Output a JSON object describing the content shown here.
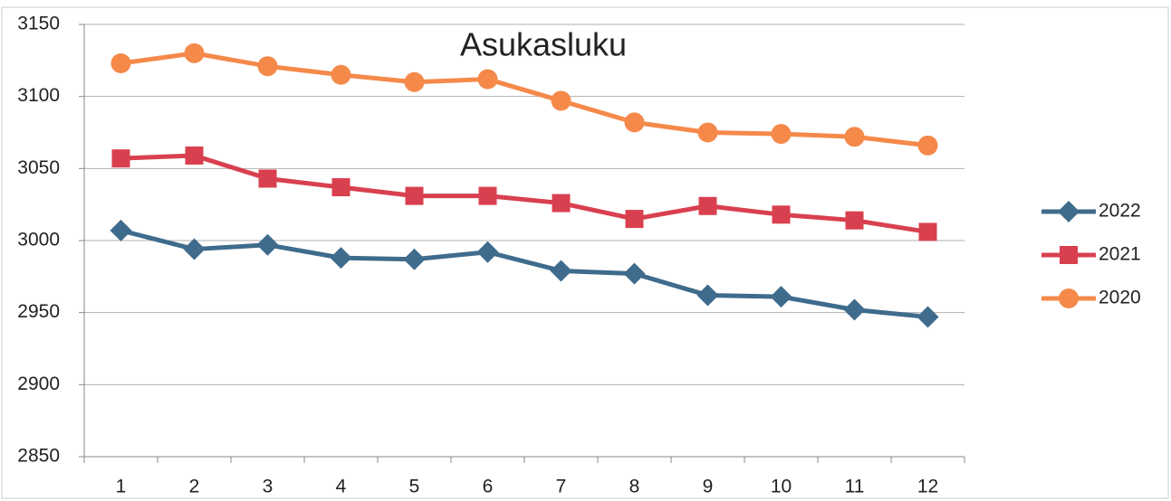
{
  "chart_data": {
    "type": "line",
    "title": "Asukasluku",
    "categories": [
      "1",
      "2",
      "3",
      "4",
      "5",
      "6",
      "7",
      "8",
      "9",
      "10",
      "11",
      "12"
    ],
    "series": [
      {
        "name": "2022",
        "color": "#3f6b8c",
        "marker": "diamond",
        "values": [
          3007,
          2994,
          2997,
          2988,
          2987,
          2992,
          2979,
          2977,
          2962,
          2961,
          2952,
          2947
        ]
      },
      {
        "name": "2021",
        "color": "#d9404f",
        "marker": "square",
        "values": [
          3057,
          3059,
          3043,
          3037,
          3031,
          3031,
          3026,
          3015,
          3024,
          3018,
          3014,
          3006
        ]
      },
      {
        "name": "2020",
        "color": "#f5894a",
        "marker": "circle",
        "values": [
          3123,
          3130,
          3121,
          3115,
          3110,
          3112,
          3097,
          3082,
          3075,
          3074,
          3072,
          3066
        ]
      }
    ],
    "ylim": [
      2850,
      3150
    ],
    "yticks": [
      2850,
      2900,
      2950,
      3000,
      3050,
      3100,
      3150
    ],
    "grid": true,
    "legend": "right"
  }
}
